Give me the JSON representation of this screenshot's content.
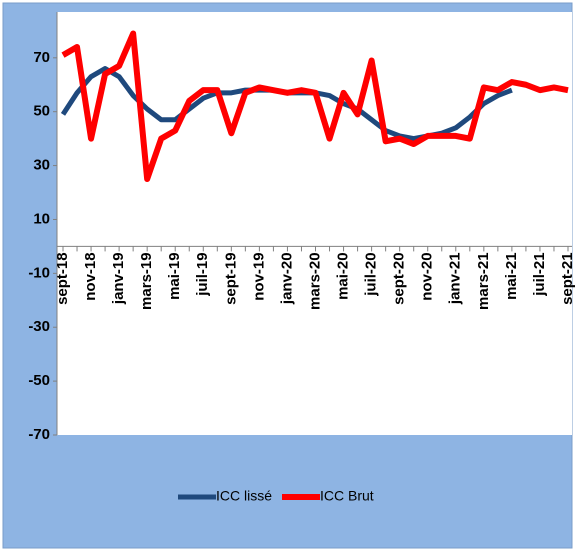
{
  "chart_data": {
    "type": "line",
    "categories": [
      "sept-18",
      null,
      "nov-18",
      null,
      "janv-19",
      null,
      "mars-19",
      null,
      "mai-19",
      null,
      "juil-19",
      null,
      "sept-19",
      null,
      "nov-19",
      null,
      "janv-20",
      null,
      "mars-20",
      null,
      "mai-20",
      null,
      "juil-20",
      null,
      "sept-20",
      null,
      "nov-20",
      null,
      "janv-21",
      null,
      "mars-21",
      null,
      "mai-21",
      null,
      "juil-21",
      null,
      "sept-21"
    ],
    "series": [
      {
        "name": "ICC lissé",
        "color": "#1f497d",
        "values": [
          49,
          57,
          63,
          66,
          63,
          56,
          51,
          47,
          47,
          51,
          55,
          57,
          57,
          58,
          58,
          58,
          57,
          57,
          57,
          56,
          53,
          51,
          47,
          43,
          41,
          40,
          41,
          42,
          44,
          48,
          53,
          56,
          58,
          null,
          null,
          null,
          null
        ]
      },
      {
        "name": "ICC Brut",
        "color": "#ff0000",
        "values": [
          71,
          74,
          40,
          64,
          67,
          79,
          25,
          40,
          43,
          54,
          58,
          58,
          42,
          57,
          59,
          58,
          57,
          58,
          57,
          40,
          57,
          49,
          69,
          39,
          40,
          38,
          41,
          41,
          41,
          40,
          59,
          58,
          61,
          60,
          58,
          59,
          58
        ]
      }
    ],
    "ylim": [
      -70,
      87
    ],
    "yticks": [
      -70,
      -50,
      -30,
      -10,
      10,
      30,
      50,
      70
    ],
    "grid": false,
    "legend": "bottom"
  }
}
